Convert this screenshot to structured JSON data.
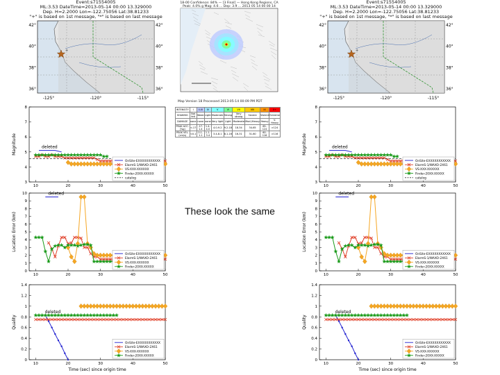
{
  "caption": "These look the same",
  "colors": {
    "onsite": "#1f1fd0",
    "elarms": "#e0402a",
    "vs": "#f5a623",
    "finder": "#1a9a1a",
    "catalog": "#333333",
    "land": "#e6e6e6",
    "water": "#d8e4ef",
    "border": "#1a8a1a",
    "star": "#b5651d"
  },
  "left_panel": {
    "map": {
      "title": [
        "Event:s71554005",
        "ML:3.53 DateTime=2013-05-14 00:00 13.329000",
        "Dep. H=2.2000 Lon=-122.75056 Lat:38.81233",
        "\"+\" is based on 1st message, \"*\" is based on last message"
      ],
      "lat_labels": [
        "42°",
        "40°",
        "38°",
        "36°"
      ],
      "lat_labels_right": [
        "42°",
        "40°",
        "38°",
        "36°"
      ],
      "lon_labels": [
        "-125°",
        "-120°",
        "-115°"
      ]
    },
    "chart_data": [
      {
        "type": "line",
        "ylabel": "Magnitude",
        "xlabel": "",
        "xlim": [
          8,
          50
        ],
        "ylim": [
          3,
          8
        ],
        "yticks": [
          3,
          4,
          5,
          6,
          7,
          8
        ],
        "xticks": [
          10,
          20,
          30,
          40,
          50
        ],
        "annotation": "deleted",
        "legend": [
          "OnSite-EXXXXXXXXXXX",
          "ElarmS-1/WAXO-2X61",
          "VS-XXX-XXXXXX",
          "Finder-20XX-XXXXX",
          "catalog"
        ],
        "legend_position": "lower-right",
        "series": [
          {
            "name": "OnSite",
            "key": "onsite",
            "marker": "none",
            "x": [
              11,
              16,
              18
            ],
            "y": [
              5.1,
              5.1,
              5.0
            ]
          },
          {
            "name": "ElarmS",
            "key": "elarms",
            "marker": "x",
            "x": [
              10,
              11,
              12,
              13,
              14,
              15,
              16,
              17,
              18,
              19,
              20,
              21,
              22,
              23,
              24,
              25,
              26,
              27,
              28,
              29,
              30,
              31,
              32,
              33,
              34,
              35,
              36,
              37,
              38,
              39,
              40,
              41,
              42,
              43,
              44,
              45,
              46,
              47,
              48,
              49,
              50
            ],
            "y": [
              4.7,
              4.7,
              4.8,
              4.7,
              4.7,
              4.8,
              4.7,
              4.7,
              4.7,
              4.6,
              4.6,
              4.6,
              4.6,
              4.6,
              4.6,
              4.6,
              4.6,
              4.6,
              4.6,
              4.5,
              4.4,
              4.4,
              4.4,
              4.4,
              4.4,
              4.4,
              4.4,
              4.4,
              4.4,
              4.4,
              4.4,
              4.4,
              4.4,
              4.4,
              4.4,
              4.4,
              4.4,
              4.4,
              4.4,
              4.4,
              4.4
            ]
          },
          {
            "name": "VS",
            "key": "vs",
            "marker": "diamond",
            "x": [
              20,
              21,
              22,
              23,
              24,
              25,
              26,
              27,
              28,
              29,
              30,
              31,
              32,
              33,
              34,
              35,
              36,
              37,
              38,
              39,
              40,
              41,
              42,
              43,
              44,
              45,
              46,
              47,
              48,
              49,
              50
            ],
            "y": [
              4.3,
              4.2,
              4.2,
              4.2,
              4.2,
              4.2,
              4.2,
              4.2,
              4.2,
              4.2,
              4.2,
              4.2,
              4.2,
              4.2,
              4.2,
              4.2,
              4.2,
              4.2,
              4.2,
              4.2,
              4.2,
              4.2,
              4.2,
              4.2,
              4.2,
              4.2,
              4.2,
              4.2,
              4.2,
              4.2,
              4.2
            ]
          },
          {
            "name": "Finder",
            "key": "finder",
            "marker": "star",
            "x": [
              10,
              11,
              12,
              13,
              14,
              15,
              16,
              17,
              18,
              19,
              20,
              21,
              22,
              23,
              24,
              25,
              26,
              27,
              28,
              29,
              30,
              31,
              32
            ],
            "y": [
              4.8,
              4.8,
              4.8,
              4.8,
              4.8,
              4.8,
              4.8,
              4.8,
              4.8,
              4.8,
              4.8,
              4.8,
              4.8,
              4.8,
              4.8,
              4.8,
              4.8,
              4.8,
              4.8,
              4.8,
              4.8,
              4.7,
              4.7
            ]
          },
          {
            "name": "catalog",
            "key": "catalog",
            "marker": "dash",
            "x": [
              8,
              50
            ],
            "y": [
              4.55,
              4.55
            ]
          }
        ]
      },
      {
        "type": "line",
        "ylabel": "Location Error (km)",
        "xlabel": "",
        "xlim": [
          8,
          50
        ],
        "ylim": [
          0,
          10
        ],
        "yticks": [
          0,
          1,
          2,
          3,
          4,
          5,
          6,
          7,
          8,
          9,
          10
        ],
        "xticks": [
          10,
          20,
          30,
          40,
          50
        ],
        "annotation": "deleted",
        "legend": [
          "OnSite-EXXXXXXXXXXX",
          "ElarmS-1/WAXO-2X61",
          "VS-XXX-XXXXXX",
          "Finder-20XX-XXXXX"
        ],
        "legend_position": "lower-right",
        "series": [
          {
            "name": "OnSite",
            "key": "onsite",
            "marker": "none",
            "x": [
              13,
              17
            ],
            "y": [
              9.5,
              9.5
            ]
          },
          {
            "name": "ElarmS",
            "key": "elarms",
            "marker": "x",
            "x": [
              14,
              15,
              16,
              17,
              18,
              19,
              20,
              21,
              22,
              23,
              24,
              25,
              26,
              27,
              28,
              29,
              30,
              31,
              32,
              33,
              34,
              35,
              36,
              37,
              38,
              39,
              40,
              41,
              42,
              43,
              44,
              45,
              46,
              47,
              48,
              49,
              50
            ],
            "y": [
              3.6,
              2.8,
              1.8,
              3.2,
              4.3,
              4.3,
              3.5,
              3.6,
              4.3,
              4.3,
              4.2,
              3.0,
              3.0,
              2.2,
              1.8,
              1.8,
              1.5,
              1.5,
              1.5,
              1.5,
              1.5,
              1.5,
              1.5,
              1.5,
              1.5,
              1.5,
              1.5,
              1.5,
              1.5,
              1.5,
              1.5,
              1.5,
              1.5,
              1.5,
              1.5,
              1.5,
              1.5
            ]
          },
          {
            "name": "VS",
            "key": "vs",
            "marker": "diamond",
            "x": [
              20,
              21,
              22,
              23,
              24,
              25,
              26,
              27,
              28,
              29,
              30,
              31,
              32,
              33,
              34,
              35,
              36,
              37,
              38,
              39,
              40,
              41,
              42,
              43,
              44,
              45,
              46,
              47,
              48,
              49,
              50
            ],
            "y": [
              3.0,
              1.8,
              1.2,
              3.5,
              9.5,
              9.5,
              3.5,
              3.0,
              2.2,
              2.0,
              2.0,
              2.0,
              2.0,
              2.0,
              2.0,
              2.0,
              2.0,
              2.0,
              2.0,
              2.0,
              2.0,
              2.0,
              2.0,
              2.0,
              2.0,
              2.0,
              2.0,
              2.0,
              2.0,
              2.0,
              2.0
            ]
          },
          {
            "name": "Finder",
            "key": "finder",
            "marker": "star",
            "x": [
              10,
              11,
              12,
              13,
              14,
              15,
              16,
              17,
              18,
              19,
              20,
              21,
              22,
              23,
              24,
              25,
              26,
              27,
              28,
              29,
              30,
              31,
              32,
              33,
              34
            ],
            "y": [
              4.3,
              4.3,
              4.3,
              2.5,
              1.2,
              2.8,
              3.2,
              3.3,
              3.3,
              3.0,
              3.3,
              3.3,
              3.3,
              3.2,
              3.3,
              3.4,
              3.4,
              3.3,
              1.2,
              1.2,
              1.2,
              1.2,
              1.2,
              1.2,
              1.2
            ]
          }
        ]
      },
      {
        "type": "line",
        "ylabel": "Quality",
        "xlabel": "Time (sec) since origin time",
        "xlim": [
          8,
          50
        ],
        "ylim": [
          0,
          1.4
        ],
        "yticks": [
          0,
          0.2,
          0.4,
          0.6,
          0.8,
          1.0,
          1.2,
          1.4
        ],
        "xticks": [
          10,
          20,
          30,
          40,
          50
        ],
        "annotation": "deleted",
        "legend": [
          "OnSite-EXXXXXXXXXXX",
          "ElarmS-1/WAXO-2X61",
          "VS-XXX-XXXXXX",
          "Finder-20XX-XXXXX"
        ],
        "legend_position": "lower-right",
        "series": [
          {
            "name": "OnSite",
            "key": "onsite",
            "marker": "dot",
            "x": [
              12,
              13,
              14,
              15,
              16,
              17,
              18,
              19,
              20
            ],
            "y": [
              0.83,
              0.83,
              0.72,
              0.6,
              0.48,
              0.36,
              0.25,
              0.12,
              0.0
            ]
          },
          {
            "name": "ElarmS",
            "key": "elarms",
            "marker": "x",
            "x": [
              10,
              11,
              12,
              13,
              14,
              15,
              16,
              17,
              18,
              19,
              20,
              21,
              22,
              23,
              24,
              25,
              26,
              27,
              28,
              29,
              30,
              31,
              32,
              33,
              34,
              35,
              36,
              37,
              38,
              39,
              40,
              41,
              42,
              43,
              44,
              45,
              46,
              47,
              48,
              49,
              50
            ],
            "y": [
              0.75,
              0.75,
              0.75,
              0.75,
              0.75,
              0.75,
              0.75,
              0.75,
              0.75,
              0.75,
              0.75,
              0.75,
              0.75,
              0.75,
              0.75,
              0.75,
              0.75,
              0.75,
              0.75,
              0.75,
              0.75,
              0.75,
              0.75,
              0.75,
              0.75,
              0.75,
              0.75,
              0.75,
              0.75,
              0.75,
              0.75,
              0.75,
              0.75,
              0.75,
              0.75,
              0.75,
              0.75,
              0.75,
              0.75,
              0.75,
              0.75
            ]
          },
          {
            "name": "VS",
            "key": "vs",
            "marker": "diamond",
            "x": [
              24,
              25,
              26,
              27,
              28,
              29,
              30,
              31,
              32,
              33,
              34,
              35,
              36,
              37,
              38,
              39,
              40,
              41,
              42,
              43,
              44,
              45,
              46,
              47,
              48,
              49,
              50
            ],
            "y": [
              1.0,
              1.0,
              1.0,
              1.0,
              1.0,
              1.0,
              1.0,
              1.0,
              1.0,
              1.0,
              1.0,
              1.0,
              1.0,
              1.0,
              1.0,
              1.0,
              1.0,
              1.0,
              1.0,
              1.0,
              1.0,
              1.0,
              1.0,
              1.0,
              1.0,
              1.0,
              1.0
            ]
          },
          {
            "name": "Finder",
            "key": "finder",
            "marker": "star",
            "x": [
              10,
              11,
              12,
              13,
              14,
              15,
              16,
              17,
              18,
              19,
              20,
              21,
              22,
              23,
              24,
              25,
              26,
              27,
              28,
              29,
              30,
              31,
              32,
              33,
              34,
              35
            ],
            "y": [
              0.83,
              0.83,
              0.83,
              0.83,
              0.83,
              0.83,
              0.83,
              0.83,
              0.83,
              0.83,
              0.83,
              0.83,
              0.83,
              0.83,
              0.83,
              0.83,
              0.83,
              0.83,
              0.83,
              0.83,
              0.83,
              0.83,
              0.83,
              0.83,
              0.83,
              0.83
            ]
          }
        ]
      }
    ]
  },
  "center": {
    "title": [
      "18-00 Confidence: 84% — [3 Final] — Hong Kong Regions, CA",
      "Peak: 4.0% g  Mag: 4.6 ... Dep: 3.9 ... 2013 05 14 00 00 14"
    ],
    "caption": "Map Version 18 Processed 2013-05-14 00:09 PM PDT",
    "table_rows": [
      [
        "INTENSITY",
        "I",
        "II-III",
        "IV",
        "V",
        "VI",
        "VII",
        "VIII",
        "IX",
        "X+"
      ],
      [
        "SHAKING",
        "Not felt",
        "Weak",
        "Light",
        "Moderate",
        "Strong",
        "Very strong",
        "Severe",
        "Violent",
        "Extreme"
      ],
      [
        "DAMAGE",
        "none",
        "none",
        "none",
        "Very light",
        "Light",
        "Moderate",
        "Mod./Heavy",
        "Heavy",
        "V. Heavy"
      ],
      [
        "PEAK ACC.(%g)",
        "<.17",
        ".17-1.4",
        "1.4-4.0",
        "4.0-9.2",
        "9.2-18",
        "18-34",
        "34-65",
        "65-124",
        ">124"
      ],
      [
        "PEAK VEL.(cm/s)",
        "<0.1",
        "0.1-1.1",
        "1.1-3.4",
        "3.4-8.1",
        "8.1-16",
        "16-31",
        "31-60",
        "60-116",
        ">116"
      ]
    ],
    "scale_colors": [
      "#ffffff",
      "#bfccff",
      "#a0e6ff",
      "#80ffff",
      "#7aff93",
      "#ffff00",
      "#ffc800",
      "#ff9100",
      "#ff0000"
    ]
  },
  "right_panel": {
    "map": {
      "title": [
        "Event:s71554005",
        "ML:3.53 DateTime=2013-05-14 00:00 13.329000",
        "Dep. H=2.2000 Lon=-122.75056 Lat:38.81233",
        "\"+\" is based on 1st message, \"*\" is based on last message"
      ],
      "lat_labels": [
        "42°",
        "40°",
        "38°",
        "36°"
      ],
      "lat_labels_right": [
        "42°",
        "40°",
        "38°",
        "36°"
      ],
      "lon_labels": [
        "-125°",
        "-120°",
        "-115°"
      ]
    }
  }
}
